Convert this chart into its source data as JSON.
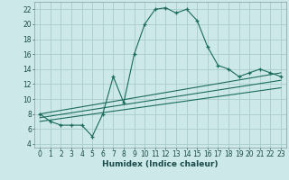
{
  "bg_color": "#cce8e8",
  "grid_color": "#aacccc",
  "line_color": "#1a6b5a",
  "xlabel": "Humidex (Indice chaleur)",
  "xlim": [
    -0.5,
    23.5
  ],
  "ylim": [
    3.5,
    23
  ],
  "xticks": [
    0,
    1,
    2,
    3,
    4,
    5,
    6,
    7,
    8,
    9,
    10,
    11,
    12,
    13,
    14,
    15,
    16,
    17,
    18,
    19,
    20,
    21,
    22,
    23
  ],
  "yticks": [
    4,
    6,
    8,
    10,
    12,
    14,
    16,
    18,
    20,
    22
  ],
  "main_curve_x": [
    0,
    1,
    2,
    3,
    4,
    5,
    6,
    7,
    8,
    9,
    10,
    11,
    12,
    13,
    14,
    15,
    16,
    17,
    18,
    19,
    20,
    21,
    22,
    23
  ],
  "main_curve_y": [
    8.0,
    7.0,
    6.5,
    6.5,
    6.5,
    5.0,
    8.0,
    13.0,
    9.5,
    16.0,
    20.0,
    22.0,
    22.2,
    21.5,
    22.0,
    20.5,
    17.0,
    14.5,
    14.0,
    13.0,
    13.5,
    14.0,
    13.5,
    13.0
  ],
  "line1_x": [
    0,
    23
  ],
  "line1_y": [
    8.0,
    13.5
  ],
  "line2_x": [
    0,
    23
  ],
  "line2_y": [
    7.5,
    12.5
  ],
  "line3_x": [
    0,
    23
  ],
  "line3_y": [
    7.0,
    11.5
  ],
  "marker_style": "+"
}
